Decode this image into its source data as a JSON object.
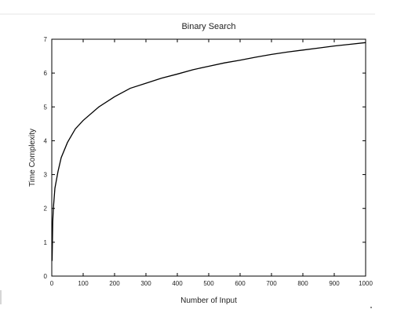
{
  "chart_data": {
    "type": "line",
    "title": "Binary Search",
    "xlabel": "Number of Input",
    "ylabel": "Time Complexity",
    "xlim": [
      0,
      1000
    ],
    "ylim": [
      0,
      7
    ],
    "x_ticks": [
      0,
      100,
      200,
      300,
      400,
      500,
      600,
      700,
      800,
      900,
      1000
    ],
    "x_tick_labels": [
      "0",
      "100",
      "200",
      "300",
      "400",
      "500",
      "600",
      "700",
      "800",
      "900",
      "1000"
    ],
    "y_ticks": [
      0,
      1,
      2,
      3,
      4,
      5,
      6,
      7
    ],
    "y_tick_labels": [
      "0",
      "1",
      "2",
      "3",
      "4",
      "5",
      "6",
      "7"
    ],
    "grid": false,
    "legend": "none",
    "series": [
      {
        "color": "#000000",
        "x": [
          1,
          2,
          3,
          5,
          10,
          20,
          30,
          50,
          75,
          100,
          150,
          200,
          250,
          300,
          350,
          400,
          450,
          500,
          550,
          600,
          650,
          700,
          750,
          800,
          850,
          900,
          950,
          1000
        ],
        "y": [
          0.45,
          1.0,
          1.6,
          2.0,
          2.6,
          3.1,
          3.5,
          3.95,
          4.35,
          4.6,
          5.0,
          5.3,
          5.55,
          5.7,
          5.85,
          5.97,
          6.1,
          6.2,
          6.3,
          6.38,
          6.47,
          6.55,
          6.62,
          6.68,
          6.74,
          6.8,
          6.85,
          6.9
        ]
      }
    ]
  }
}
